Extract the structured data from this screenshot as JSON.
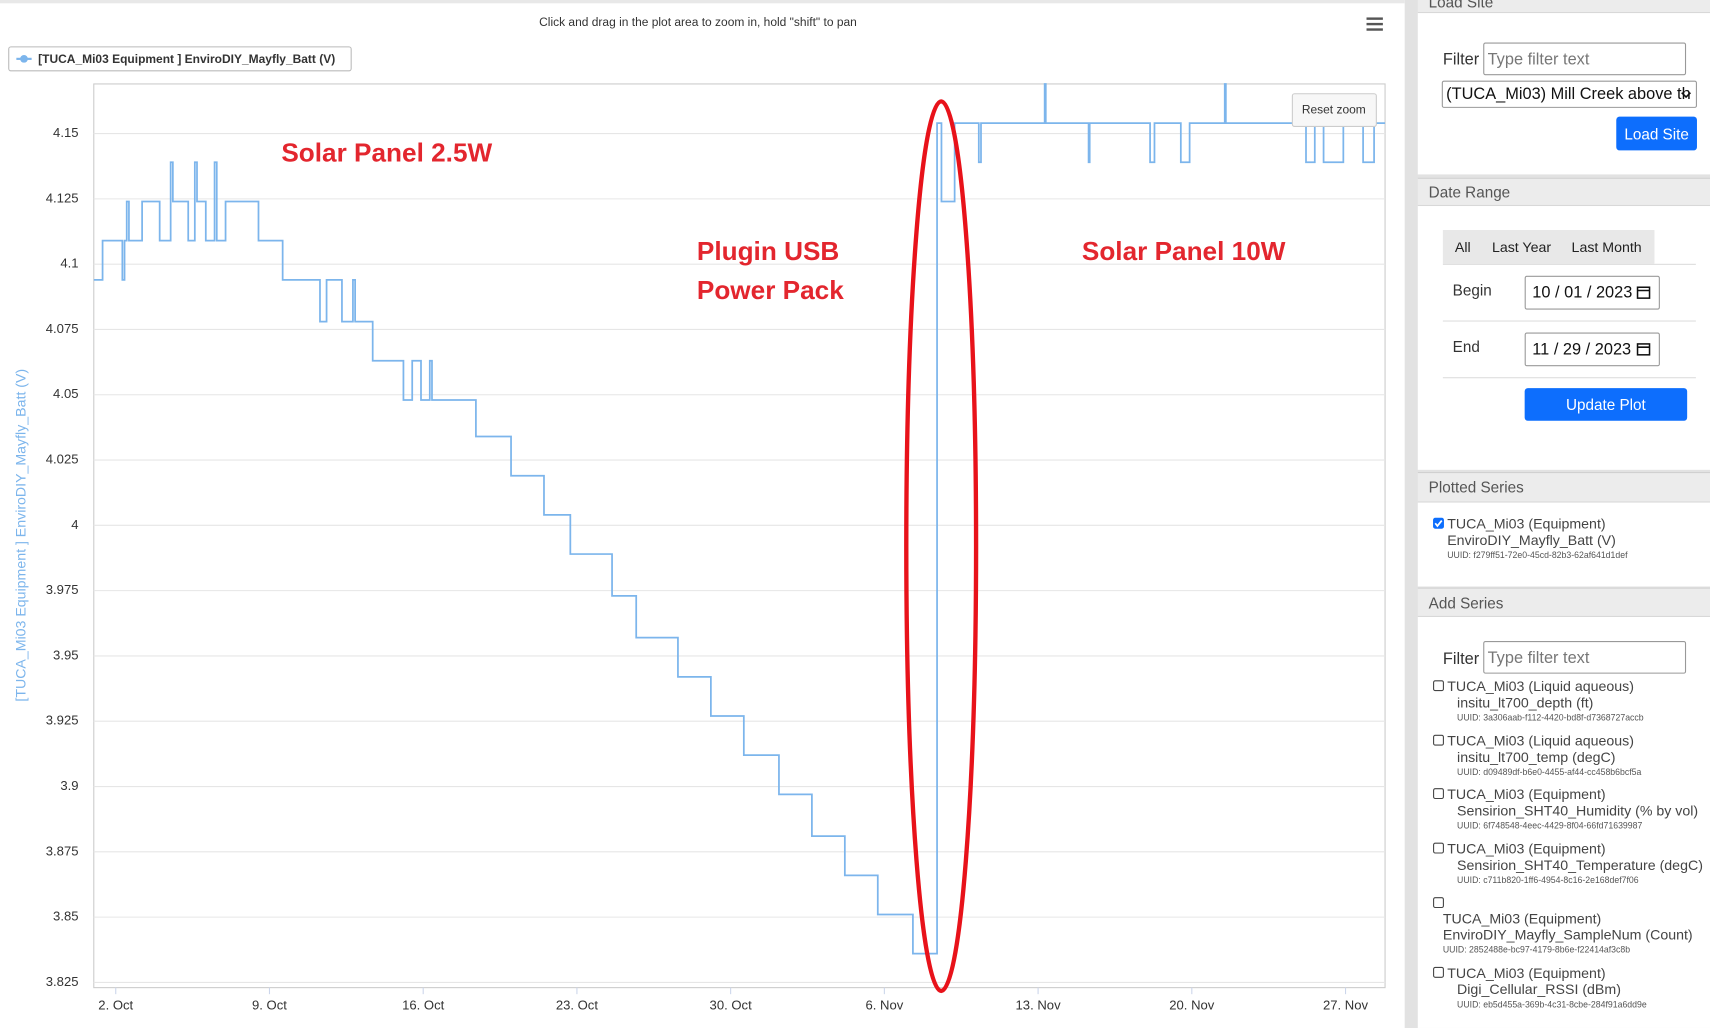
{
  "chart_data": {
    "type": "line",
    "subtitle": "Click and drag in the plot area to zoom in, hold \"shift\" to pan",
    "y_label": "[TUCA_Mi03 Equipment ] EnviroDIY_Mayfly_Batt (V)",
    "reset_button": "Reset zoom",
    "annotations": [
      "Solar Panel 2.5W",
      "Plugin USB",
      "Power Pack",
      "Solar Panel 10W"
    ],
    "xlim": [
      1,
      59.8
    ],
    "ylim": [
      3.823,
      4.169
    ],
    "xticks": [
      {
        "value": 2,
        "label": "2. Oct"
      },
      {
        "value": 9,
        "label": "9. Oct"
      },
      {
        "value": 16,
        "label": "16. Oct"
      },
      {
        "value": 23,
        "label": "23. Oct"
      },
      {
        "value": 30,
        "label": "30. Oct"
      },
      {
        "value": 37,
        "label": "6. Nov"
      },
      {
        "value": 44,
        "label": "13. Nov"
      },
      {
        "value": 51,
        "label": "20. Nov"
      },
      {
        "value": 58,
        "label": "27. Nov"
      }
    ],
    "yticks": [
      3.825,
      3.85,
      3.875,
      3.9,
      3.925,
      3.95,
      3.975,
      4,
      4.025,
      4.05,
      4.075,
      4.1,
      4.125,
      4.15
    ],
    "grid": true,
    "legend": "top-left",
    "series": [
      {
        "name": "[TUCA_Mi03 Equipment ] EnviroDIY_Mayfly_Batt (V)",
        "color": "#7cb5ec",
        "x": [
          1.0,
          1.4,
          1.4,
          2.3,
          2.3,
          2.4,
          2.4,
          2.5,
          2.5,
          2.6,
          2.6,
          3.2,
          3.2,
          4.0,
          4.0,
          4.5,
          4.5,
          4.6,
          4.6,
          5.3,
          5.3,
          5.6,
          5.6,
          5.7,
          5.7,
          6.1,
          6.1,
          6.5,
          6.5,
          6.6,
          6.6,
          7.0,
          7.0,
          8.5,
          8.5,
          9.6,
          9.6,
          11.3,
          11.3,
          11.6,
          11.6,
          12.3,
          12.3,
          12.8,
          12.8,
          12.9,
          12.9,
          13.7,
          13.7,
          15.1,
          15.1,
          15.5,
          15.5,
          15.9,
          15.9,
          16.3,
          16.3,
          16.4,
          16.4,
          18.4,
          18.4,
          20.0,
          20.0,
          21.5,
          21.5,
          22.7,
          22.7,
          24.6,
          24.6,
          25.7,
          25.7,
          27.6,
          27.6,
          29.1,
          29.1,
          30.6,
          30.6,
          32.2,
          32.2,
          33.7,
          33.7,
          35.2,
          35.2,
          36.7,
          36.7,
          38.3,
          38.3,
          39.4,
          39.4,
          39.6,
          39.6,
          40.2,
          40.2,
          41.3,
          41.3,
          41.4,
          41.4,
          44.3,
          44.3,
          44.35,
          44.35,
          46.3,
          46.3,
          46.35,
          46.35,
          49.1,
          49.1,
          49.3,
          49.3,
          50.5,
          50.5,
          50.9,
          50.9,
          52.5,
          52.5,
          52.55,
          52.55,
          56.2,
          56.2,
          56.6,
          56.6,
          57.0,
          57.0,
          57.9,
          57.9,
          58.8,
          58.8,
          59.3,
          59.3,
          59.8
        ],
        "values": [
          4.094,
          4.094,
          4.109,
          4.109,
          4.094,
          4.094,
          4.109,
          4.109,
          4.124,
          4.124,
          4.109,
          4.109,
          4.124,
          4.124,
          4.109,
          4.109,
          4.139,
          4.139,
          4.124,
          4.124,
          4.109,
          4.109,
          4.139,
          4.139,
          4.124,
          4.124,
          4.109,
          4.109,
          4.139,
          4.139,
          4.109,
          4.109,
          4.124,
          4.124,
          4.109,
          4.109,
          4.094,
          4.094,
          4.078,
          4.078,
          4.094,
          4.094,
          4.078,
          4.078,
          4.094,
          4.094,
          4.078,
          4.078,
          4.063,
          4.063,
          4.048,
          4.048,
          4.063,
          4.063,
          4.048,
          4.048,
          4.063,
          4.063,
          4.048,
          4.048,
          4.034,
          4.034,
          4.019,
          4.019,
          4.004,
          4.004,
          3.989,
          3.989,
          3.973,
          3.973,
          3.957,
          3.957,
          3.942,
          3.942,
          3.927,
          3.927,
          3.912,
          3.912,
          3.897,
          3.897,
          3.881,
          3.881,
          3.866,
          3.866,
          3.851,
          3.851,
          3.836,
          3.836,
          4.154,
          4.154,
          4.124,
          4.124,
          4.154,
          4.154,
          4.139,
          4.139,
          4.154,
          4.154,
          4.169,
          4.169,
          4.154,
          4.154,
          4.139,
          4.139,
          4.154,
          4.154,
          4.139,
          4.139,
          4.154,
          4.154,
          4.139,
          4.139,
          4.154,
          4.154,
          4.169,
          4.169,
          4.154,
          4.154,
          4.139,
          4.139,
          4.154,
          4.154,
          4.139,
          4.139,
          4.154,
          4.154,
          4.139,
          4.139,
          4.154,
          4.154
        ]
      }
    ]
  },
  "sidebar": {
    "load_site": {
      "header": "Load Site",
      "filter_label": "Filter",
      "filter_placeholder": "Type filter text",
      "site": "(TUCA_Mi03) Mill Creek above th",
      "button": "Load Site"
    },
    "date_range": {
      "header": "Date Range",
      "tabs": [
        "All",
        "Last Year",
        "Last Month"
      ],
      "begin_label": "Begin",
      "begin": "10 / 01 / 2023",
      "end_label": "End",
      "end": "11 / 29 / 2023",
      "button": "Update Plot"
    },
    "plotted_series": {
      "header": "Plotted Series",
      "items": [
        {
          "line1": "TUCA_Mi03 (Equipment)",
          "line2": "EnviroDIY_Mayfly_Batt (V)",
          "uuid": "UUID: f279ff51-72e0-45cd-82b3-62af641d1def"
        }
      ]
    },
    "add_series": {
      "header": "Add Series",
      "filter_label": "Filter",
      "filter_placeholder": "Type filter text",
      "items": [
        {
          "line1": "TUCA_Mi03 (Liquid aqueous)",
          "line2": "insitu_lt700_depth (ft)",
          "uuid": "UUID: 3a306aab-f112-4420-bd8f-d7368727accb"
        },
        {
          "line1": "TUCA_Mi03 (Liquid aqueous)",
          "line2": "insitu_lt700_temp (degC)",
          "uuid": "UUID: d09489df-b6e0-4455-af44-cc458b6bcf5a"
        },
        {
          "line1": "TUCA_Mi03 (Equipment)",
          "line2": "Sensirion_SHT40_Humidity (% by vol)",
          "uuid": "UUID: 6f748548-4eec-4429-8f04-66fd71639987"
        },
        {
          "line1": "TUCA_Mi03 (Equipment)",
          "line2": "Sensirion_SHT40_Temperature (degC)",
          "uuid": "UUID: c711b820-1ff6-4954-8c16-2e168def7f06"
        },
        {
          "line1": "TUCA_Mi03 (Equipment)",
          "line2": "EnviroDIY_Mayfly_SampleNum (Count)",
          "uuid": "UUID: 2852488e-bc97-4179-8b6e-f22414af3c8b"
        },
        {
          "line1": "TUCA_Mi03 (Equipment)",
          "line2": "Digi_Cellular_RSSI (dBm)",
          "uuid": "UUID: eb5d455a-369b-4c31-8cbe-284f91a6dd9e"
        }
      ]
    }
  }
}
